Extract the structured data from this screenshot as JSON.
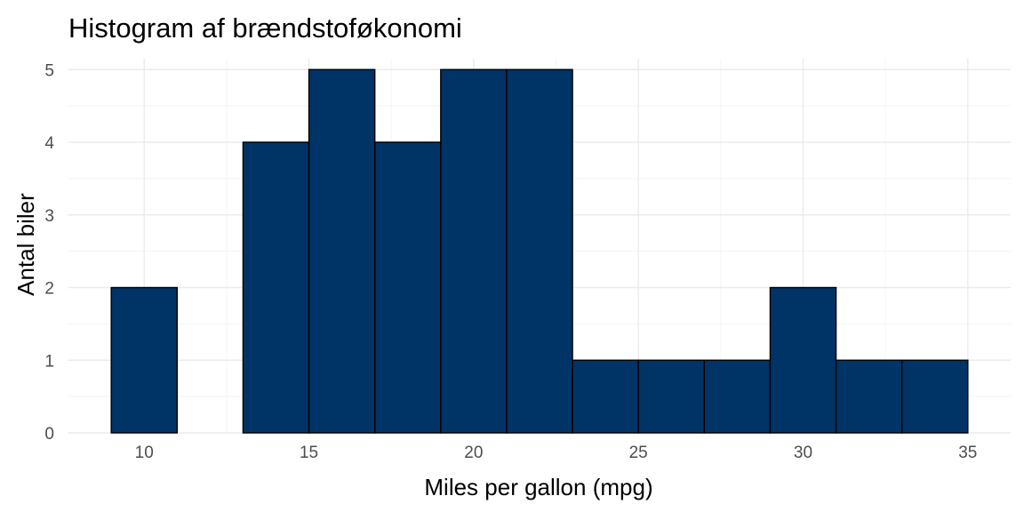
{
  "chart_data": {
    "type": "bar",
    "title": "Histogram af brændstoføkonomi",
    "xlabel": "Miles per gallon (mpg)",
    "ylabel": "Antal biler",
    "bin_edges": [
      9,
      11,
      13,
      15,
      17,
      19,
      21,
      23,
      25,
      27,
      29,
      31,
      33,
      35
    ],
    "values": [
      2,
      0,
      4,
      5,
      4,
      5,
      5,
      1,
      1,
      1,
      2,
      1,
      1
    ],
    "xlim": [
      7.7,
      36.3
    ],
    "ylim": [
      0,
      5.15
    ],
    "x_ticks": [
      10,
      15,
      20,
      25,
      30,
      35
    ],
    "y_ticks": [
      0,
      1,
      2,
      3,
      4,
      5
    ],
    "grid": true,
    "fill_color": "#003366",
    "outline_color": "#000000"
  }
}
